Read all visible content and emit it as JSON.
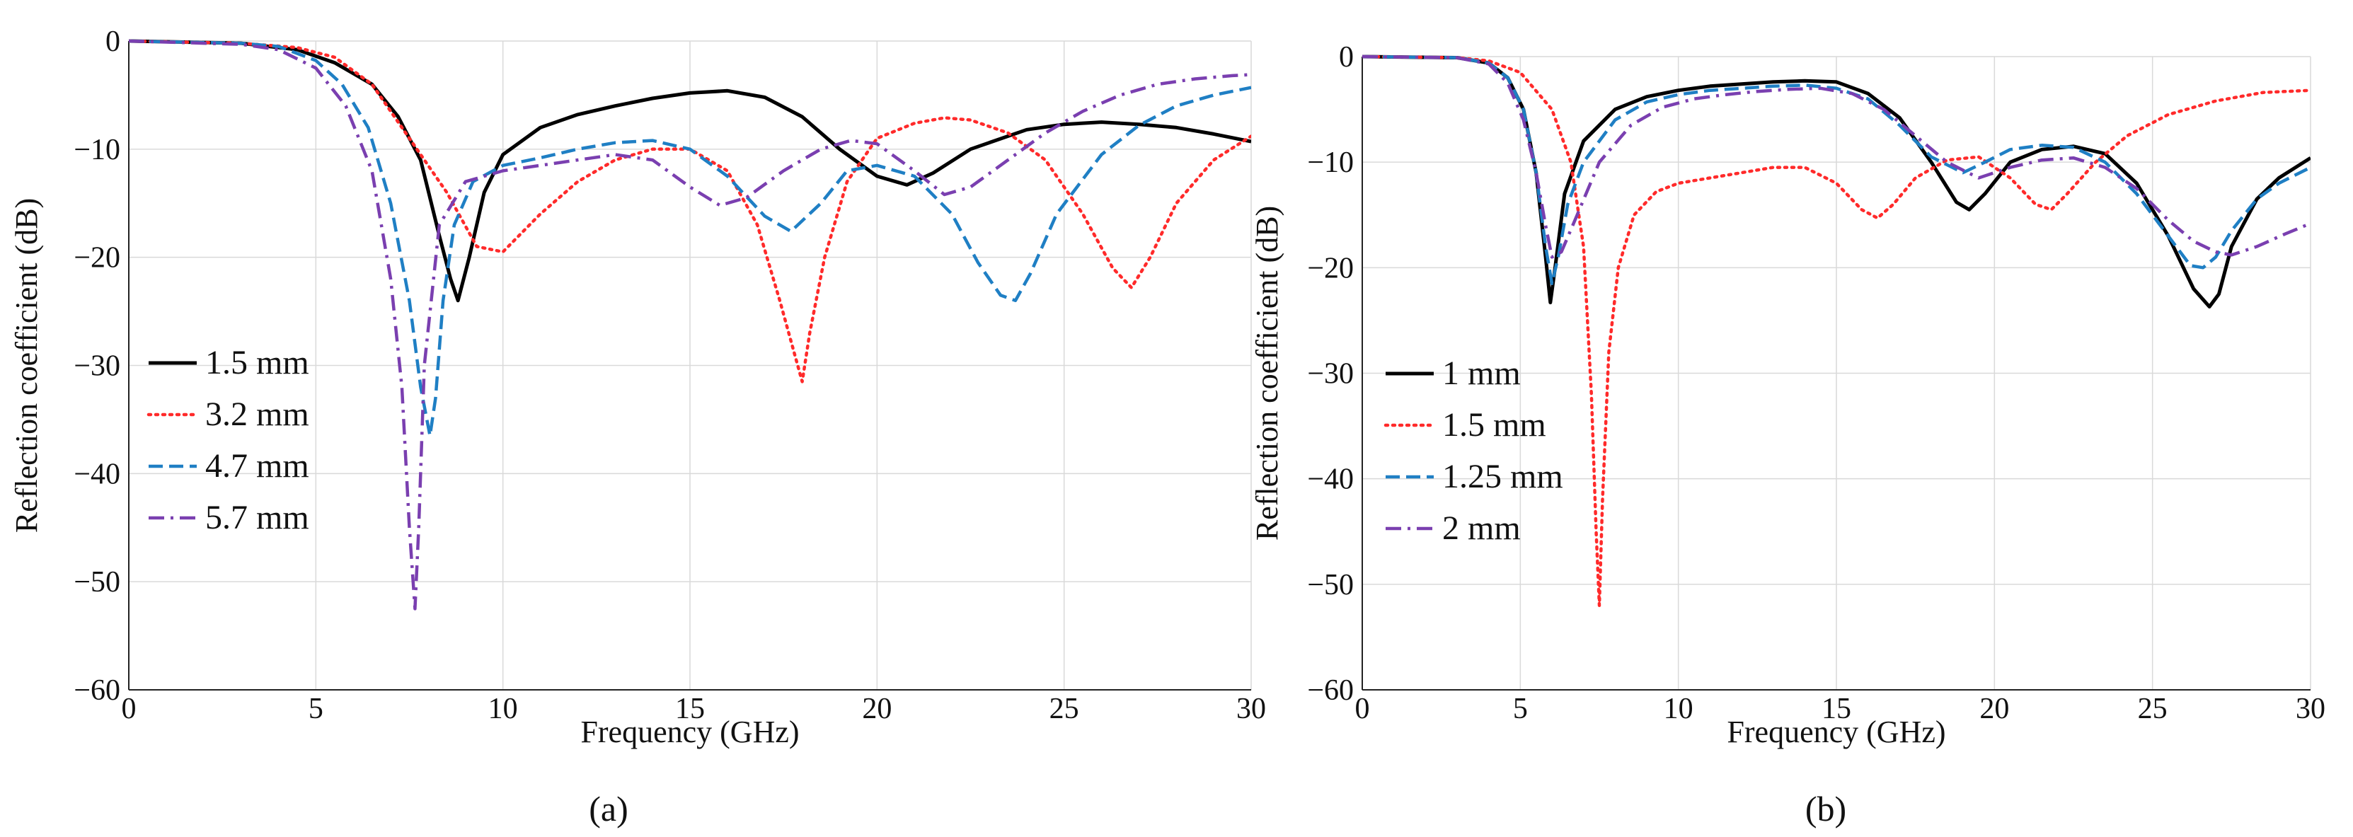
{
  "chart_data": [
    {
      "type": "line",
      "caption": "(a)",
      "xlabel": "Frequency (GHz)",
      "ylabel": "Reflection coefficient (dB)",
      "xlim": [
        0,
        30
      ],
      "ylim": [
        -60,
        0
      ],
      "xticks": [
        0,
        5,
        10,
        15,
        20,
        25,
        30
      ],
      "yticks": [
        0,
        -10,
        -20,
        -30,
        -40,
        -50,
        -60
      ],
      "grid": true,
      "legend_position": "center-left",
      "series": [
        {
          "name": "1.5 mm",
          "color": "#000000",
          "style": "solid",
          "x": [
            0,
            3,
            4.5,
            5.5,
            6.5,
            7.2,
            7.8,
            8.3,
            8.6,
            8.8,
            9.1,
            9.5,
            10,
            11,
            12,
            13,
            14,
            15,
            16,
            17,
            18,
            19,
            20,
            20.8,
            21.5,
            22.5,
            24,
            25,
            26,
            27,
            28,
            29,
            30
          ],
          "y": [
            0,
            -0.2,
            -0.8,
            -2,
            -4,
            -7,
            -11,
            -18,
            -22,
            -24,
            -20,
            -14,
            -10.5,
            -8,
            -6.8,
            -6,
            -5.3,
            -4.8,
            -4.6,
            -5.2,
            -7,
            -10,
            -12.5,
            -13.3,
            -12.2,
            -10,
            -8.2,
            -7.7,
            -7.5,
            -7.7,
            -8,
            -8.6,
            -9.3
          ]
        },
        {
          "name": "3.2 mm",
          "color": "#ff2a2a",
          "style": "dotted",
          "x": [
            0,
            3,
            4.5,
            5.5,
            6.5,
            7.5,
            8.5,
            9.3,
            10,
            11,
            12,
            13,
            14,
            15,
            16,
            16.8,
            17.4,
            17.8,
            18,
            18.2,
            18.6,
            19.2,
            20,
            21,
            21.8,
            22.5,
            23.5,
            24.5,
            25.5,
            26.3,
            26.8,
            27.3,
            28,
            29,
            30
          ],
          "y": [
            0,
            -0.2,
            -0.6,
            -1.5,
            -4,
            -9,
            -14,
            -19,
            -19.5,
            -16,
            -13,
            -11,
            -10,
            -10,
            -12,
            -17,
            -24,
            -29,
            -31.5,
            -27,
            -20,
            -13,
            -9,
            -7.6,
            -7.1,
            -7.3,
            -8.5,
            -11,
            -16,
            -21,
            -22.8,
            -20,
            -15,
            -11,
            -8.8
          ]
        },
        {
          "name": "4.7 mm",
          "color": "#1f7fc4",
          "style": "dashed",
          "x": [
            0,
            3,
            4,
            5,
            5.7,
            6.4,
            7,
            7.5,
            7.8,
            8.05,
            8.2,
            8.4,
            8.7,
            9.2,
            10,
            11,
            12,
            13,
            14,
            15,
            16,
            17,
            17.7,
            18.5,
            19.2,
            20,
            21,
            22,
            22.7,
            23.3,
            23.7,
            24.1,
            24.8,
            26,
            27,
            28,
            29,
            30
          ],
          "y": [
            0,
            -0.2,
            -0.5,
            -1.8,
            -4,
            -8,
            -15,
            -24,
            -32,
            -36.5,
            -33,
            -24,
            -17,
            -13,
            -11.5,
            -10.8,
            -10,
            -9.4,
            -9.2,
            -10,
            -12.5,
            -16.2,
            -17.6,
            -15,
            -12,
            -11.5,
            -12.5,
            -16,
            -20.5,
            -23.5,
            -24,
            -21.5,
            -16,
            -10.5,
            -7.8,
            -6,
            -5,
            -4.3
          ]
        },
        {
          "name": "5.7 mm",
          "color": "#7a3fb0",
          "style": "dashdot",
          "x": [
            0,
            3,
            4,
            5,
            5.8,
            6.5,
            7,
            7.3,
            7.5,
            7.65,
            7.75,
            7.9,
            8.3,
            9,
            10,
            11,
            12,
            13,
            14,
            15,
            15.8,
            16.5,
            17.5,
            18.5,
            19.3,
            20,
            21,
            21.8,
            22.5,
            23.5,
            24.5,
            25.5,
            26.5,
            27.5,
            28.5,
            29.5,
            30
          ],
          "y": [
            0,
            -0.3,
            -0.8,
            -2.5,
            -6,
            -12,
            -22,
            -32,
            -45,
            -52.5,
            -45,
            -30,
            -17,
            -13,
            -12,
            -11.5,
            -11,
            -10.5,
            -11,
            -13.5,
            -15.2,
            -14.5,
            -12,
            -10,
            -9.2,
            -9.5,
            -12,
            -14.2,
            -13.5,
            -11,
            -8.5,
            -6.5,
            -5,
            -4,
            -3.5,
            -3.2,
            -3.1
          ]
        }
      ]
    },
    {
      "type": "line",
      "caption": "(b)",
      "xlabel": "Frequency (GHz)",
      "ylabel": "Reflection coefficient (dB)",
      "xlim": [
        0,
        30
      ],
      "ylim": [
        -60,
        0
      ],
      "xticks": [
        0,
        5,
        10,
        15,
        20,
        25,
        30
      ],
      "yticks": [
        0,
        -10,
        -20,
        -30,
        -40,
        -50,
        -60
      ],
      "grid": true,
      "legend_position": "center-left",
      "series": [
        {
          "name": "1 mm",
          "color": "#000000",
          "style": "solid",
          "x": [
            0,
            3,
            4,
            4.6,
            5.1,
            5.5,
            5.8,
            5.95,
            6.1,
            6.4,
            7,
            8,
            9,
            10,
            11,
            12,
            13,
            14,
            15,
            16,
            17,
            18,
            18.8,
            19.2,
            19.7,
            20.5,
            21.5,
            22.5,
            23.5,
            24.5,
            25.5,
            26.3,
            26.8,
            27.1,
            27.5,
            28.3,
            29,
            30
          ],
          "y": [
            0,
            -0.1,
            -0.6,
            -2,
            -5,
            -11,
            -19,
            -23.3,
            -20,
            -13,
            -8,
            -5,
            -3.8,
            -3.2,
            -2.8,
            -2.6,
            -2.4,
            -2.3,
            -2.4,
            -3.5,
            -5.8,
            -10,
            -13.8,
            -14.5,
            -13,
            -10,
            -8.8,
            -8.5,
            -9.2,
            -12,
            -17,
            -22,
            -23.7,
            -22.5,
            -18,
            -13.5,
            -11.5,
            -9.6
          ]
        },
        {
          "name": "1.5 mm",
          "color": "#ff2a2a",
          "style": "dotted",
          "x": [
            0,
            3,
            4,
            5,
            6,
            6.6,
            7,
            7.25,
            7.4,
            7.5,
            7.6,
            7.8,
            8.1,
            8.6,
            9.3,
            10,
            11,
            12,
            13,
            14,
            15,
            15.8,
            16.3,
            16.8,
            17.5,
            18.5,
            19.5,
            20.5,
            21.3,
            21.8,
            22.3,
            23.2,
            24.2,
            25.5,
            27,
            28.5,
            30
          ],
          "y": [
            0,
            -0.1,
            -0.4,
            -1.5,
            -5,
            -10,
            -18,
            -32,
            -45,
            -52,
            -42,
            -28,
            -20,
            -15,
            -12.8,
            -12,
            -11.5,
            -11,
            -10.5,
            -10.5,
            -12,
            -14.5,
            -15.3,
            -14,
            -11.5,
            -9.8,
            -9.5,
            -11.5,
            -14,
            -14.5,
            -13,
            -10,
            -7.5,
            -5.5,
            -4.2,
            -3.4,
            -3.2
          ]
        },
        {
          "name": "1.25 mm",
          "color": "#1f7fc4",
          "style": "dashed",
          "x": [
            0,
            3,
            4,
            4.6,
            5.1,
            5.5,
            5.8,
            6,
            6.2,
            6.5,
            7,
            8,
            9,
            10,
            11,
            12,
            13,
            14,
            15,
            16,
            17,
            18,
            19,
            19.7,
            20.5,
            21.5,
            22.5,
            23.5,
            24.5,
            25.5,
            26.2,
            26.6,
            27,
            27.5,
            28.3,
            29,
            30
          ],
          "y": [
            0,
            -0.1,
            -0.6,
            -2,
            -5,
            -11,
            -18,
            -21.5,
            -19,
            -14,
            -10,
            -6,
            -4.3,
            -3.6,
            -3.2,
            -3,
            -2.8,
            -2.7,
            -3,
            -4,
            -6.5,
            -9.5,
            -11,
            -10,
            -8.8,
            -8.4,
            -8.6,
            -10,
            -13,
            -17,
            -19.8,
            -20,
            -19,
            -16.5,
            -13.5,
            -12,
            -10.5
          ]
        },
        {
          "name": "2 mm",
          "color": "#7a3fb0",
          "style": "dashdot",
          "x": [
            0,
            3,
            4,
            4.6,
            5.1,
            5.5,
            5.8,
            6,
            6.3,
            6.8,
            7.5,
            8.5,
            9.5,
            10.5,
            11.5,
            12.5,
            13.5,
            14.5,
            15.5,
            16.5,
            17.5,
            18.5,
            19.5,
            20.5,
            21.5,
            22.5,
            23.5,
            24.5,
            25.5,
            26.3,
            27,
            27.5,
            28.3,
            29.2,
            30
          ],
          "y": [
            0,
            -0.1,
            -0.7,
            -2.5,
            -6,
            -11,
            -16,
            -19,
            -18.5,
            -15,
            -10,
            -6.5,
            -4.8,
            -4,
            -3.6,
            -3.3,
            -3.1,
            -3,
            -3.5,
            -5,
            -7.5,
            -10,
            -11.5,
            -10.5,
            -9.8,
            -9.6,
            -10.5,
            -12.5,
            -15.5,
            -17.5,
            -18.5,
            -18.8,
            -18,
            -16.8,
            -15.8
          ]
        }
      ]
    }
  ]
}
